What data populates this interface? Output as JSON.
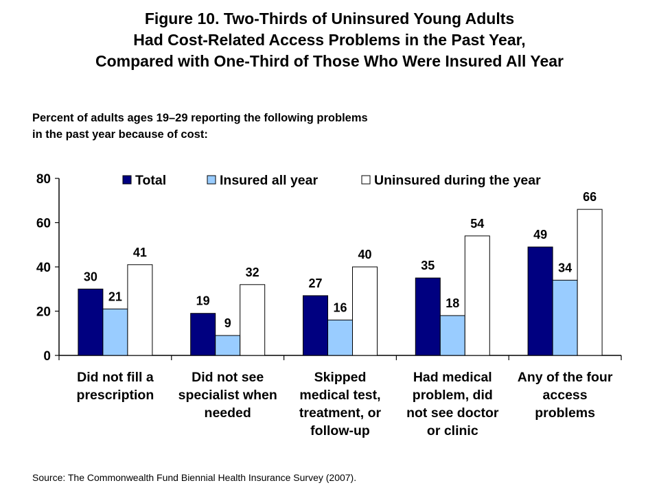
{
  "title_lines": [
    "Figure 10. Two-Thirds of Uninsured Young Adults",
    "Had Cost-Related Access Problems in the Past Year,",
    "Compared with One-Third of Those Who Were Insured All Year"
  ],
  "subtitle_lines": [
    "Percent of adults ages 19–29 reporting the following problems",
    "in the past year because of cost:"
  ],
  "source": "Source: The Commonwealth Fund Biennial Health Insurance Survey (2007).",
  "chart_data": {
    "type": "bar",
    "categories": [
      [
        "Did not fill a",
        "prescription"
      ],
      [
        "Did not see",
        "specialist when",
        "needed"
      ],
      [
        "Skipped",
        "medical test,",
        "treatment, or",
        "follow-up"
      ],
      [
        "Had medical",
        "problem, did",
        "not see doctor",
        "or clinic"
      ],
      [
        "Any of the four",
        "access",
        "problems"
      ]
    ],
    "series": [
      {
        "name": "Total",
        "color": "#000080",
        "values": [
          30,
          19,
          27,
          35,
          49
        ]
      },
      {
        "name": "Insured all year",
        "color": "#99ccff",
        "values": [
          21,
          9,
          16,
          18,
          34
        ]
      },
      {
        "name": "Uninsured during the year",
        "color": "#ffffff",
        "values": [
          41,
          32,
          40,
          54,
          66
        ]
      }
    ],
    "ylim": [
      0,
      80
    ],
    "yticks": [
      0,
      20,
      40,
      60,
      80
    ],
    "legend": "top",
    "grid": false
  }
}
